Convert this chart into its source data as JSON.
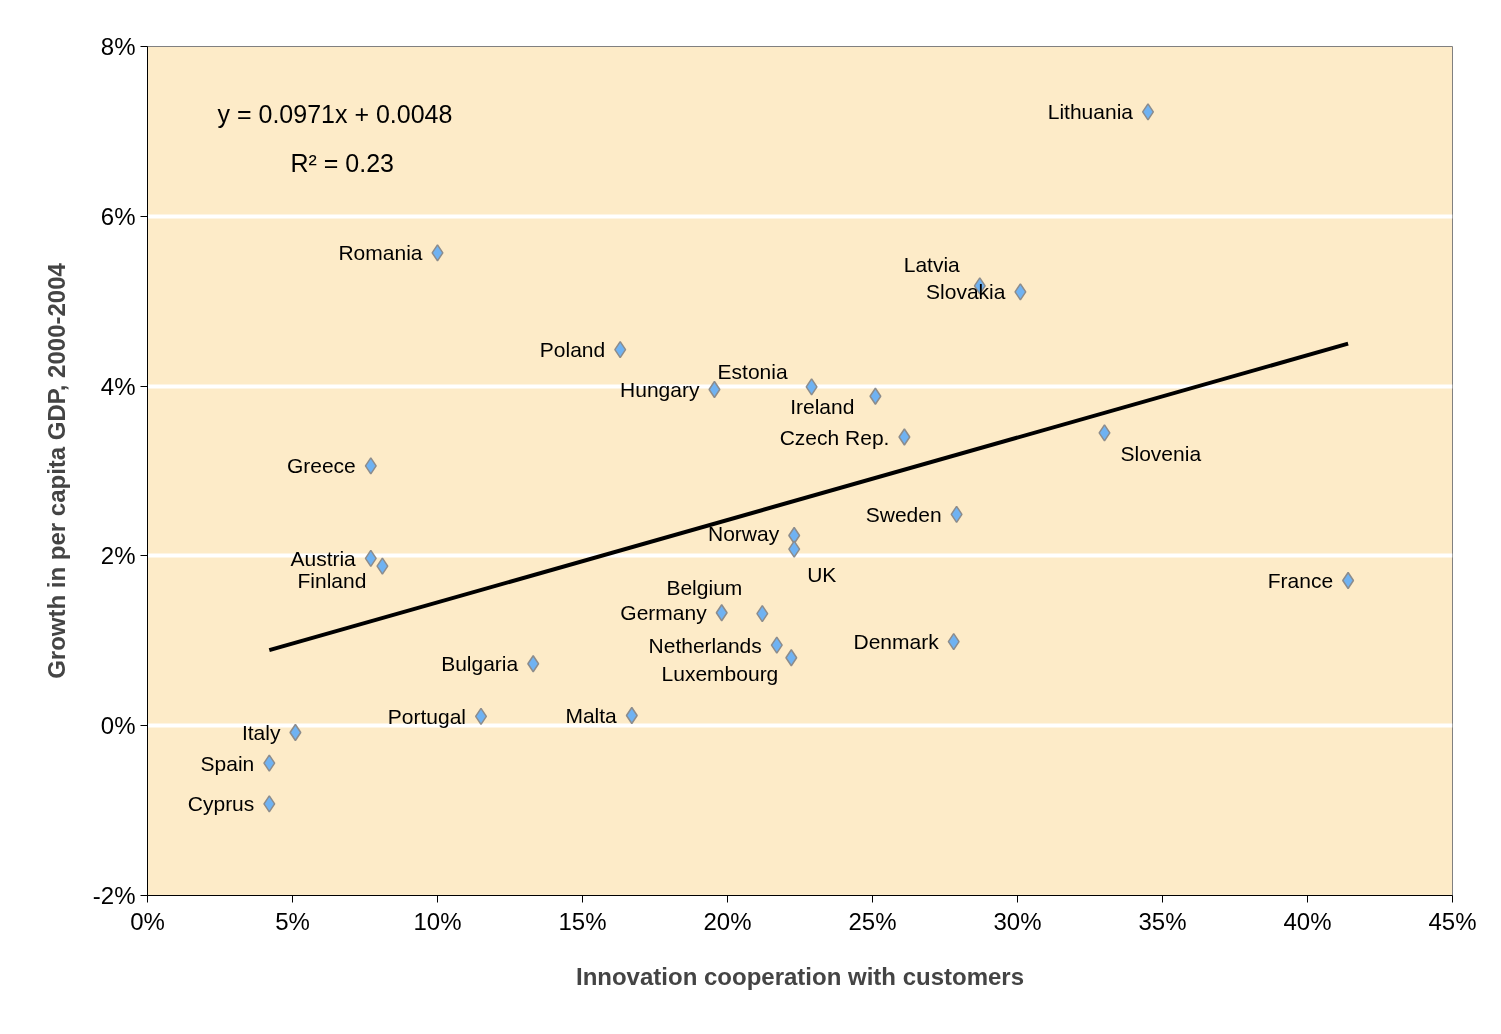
{
  "chart_data": {
    "type": "scatter",
    "xlabel": "Innovation cooperation with customers",
    "ylabel": "Growth in per capita GDP, 2000-2004",
    "xlim": [
      0,
      45
    ],
    "ylim": [
      -2,
      8
    ],
    "xticks": [
      {
        "value": 0,
        "label": "0%"
      },
      {
        "value": 5,
        "label": "5%"
      },
      {
        "value": 10,
        "label": "10%"
      },
      {
        "value": 15,
        "label": "15%"
      },
      {
        "value": 20,
        "label": "20%"
      },
      {
        "value": 25,
        "label": "25%"
      },
      {
        "value": 30,
        "label": "30%"
      },
      {
        "value": 35,
        "label": "35%"
      },
      {
        "value": 40,
        "label": "40%"
      },
      {
        "value": 45,
        "label": "45%"
      }
    ],
    "yticks": [
      {
        "value": -2,
        "label": "-2%"
      },
      {
        "value": 0,
        "label": "0%"
      },
      {
        "value": 2,
        "label": "2%"
      },
      {
        "value": 4,
        "label": "4%"
      },
      {
        "value": 6,
        "label": "6%"
      },
      {
        "value": 8,
        "label": "8%"
      }
    ],
    "grid": "y",
    "series": [
      {
        "marker": "diamond",
        "color": "#6fb2f2",
        "x": [
          34.5,
          10.0,
          28.7,
          30.1,
          16.3,
          19.55,
          22.9,
          25.1,
          26.1,
          33.0,
          7.7,
          27.9,
          22.3,
          22.3,
          7.7,
          8.1,
          41.4,
          21.2,
          19.8,
          27.8,
          21.7,
          22.2,
          13.3,
          11.5,
          16.7,
          5.1,
          4.2,
          4.2
        ],
        "values": [
          7.23,
          5.57,
          5.18,
          5.11,
          4.43,
          3.96,
          3.99,
          3.88,
          3.4,
          3.45,
          3.06,
          2.49,
          2.24,
          2.08,
          1.97,
          1.88,
          1.71,
          1.32,
          1.33,
          0.99,
          0.95,
          0.8,
          0.73,
          0.11,
          0.12,
          -0.08,
          -0.44,
          -0.92
        ]
      },
      {
        "type": "line",
        "marker": "none",
        "color": "#000000",
        "x": [
          4.2,
          41.4
        ],
        "values": [
          0.89,
          4.5
        ]
      }
    ],
    "annotations": [
      "y = 0.0971x + 0.0048",
      "R² = 0.23",
      {
        "text": "Lithuania",
        "x": 34.5,
        "y": 7.23
      },
      {
        "text": "Romania",
        "x": 10.0,
        "y": 5.57
      },
      {
        "text": "Latvia",
        "x": 28.7,
        "y": 5.18
      },
      {
        "text": "Slovakia",
        "x": 30.1,
        "y": 5.11
      },
      {
        "text": "Poland",
        "x": 16.3,
        "y": 4.43
      },
      {
        "text": "Hungary",
        "x": 19.55,
        "y": 3.96
      },
      {
        "text": "Estonia",
        "x": 22.9,
        "y": 3.99
      },
      {
        "text": "Ireland",
        "x": 25.1,
        "y": 3.88
      },
      {
        "text": "Czech Rep.",
        "x": 26.1,
        "y": 3.4
      },
      {
        "text": "Slovenia",
        "x": 33.0,
        "y": 3.45
      },
      {
        "text": "Greece",
        "x": 7.7,
        "y": 3.06
      },
      {
        "text": "Sweden",
        "x": 27.9,
        "y": 2.49
      },
      {
        "text": "Norway",
        "x": 22.3,
        "y": 2.24
      },
      {
        "text": "UK",
        "x": 22.3,
        "y": 2.08
      },
      {
        "text": "Austria",
        "x": 7.7,
        "y": 1.97
      },
      {
        "text": "Finland",
        "x": 8.1,
        "y": 1.88
      },
      {
        "text": "France",
        "x": 41.4,
        "y": 1.71
      },
      {
        "text": "Belgium",
        "x": 21.2,
        "y": 1.32
      },
      {
        "text": "Germany",
        "x": 19.8,
        "y": 1.33
      },
      {
        "text": "Denmark",
        "x": 27.8,
        "y": 0.99
      },
      {
        "text": "Netherlands",
        "x": 21.7,
        "y": 0.95
      },
      {
        "text": "Luxembourg",
        "x": 22.2,
        "y": 0.8
      },
      {
        "text": "Bulgaria",
        "x": 13.3,
        "y": 0.73
      },
      {
        "text": "Portugal",
        "x": 11.5,
        "y": 0.11
      },
      {
        "text": "Malta",
        "x": 16.7,
        "y": 0.12
      },
      {
        "text": "Italy",
        "x": 5.1,
        "y": -0.08
      },
      {
        "text": "Spain",
        "x": 4.2,
        "y": -0.44
      },
      {
        "text": "Cyprus",
        "x": 4.2,
        "y": -0.92
      }
    ]
  }
}
